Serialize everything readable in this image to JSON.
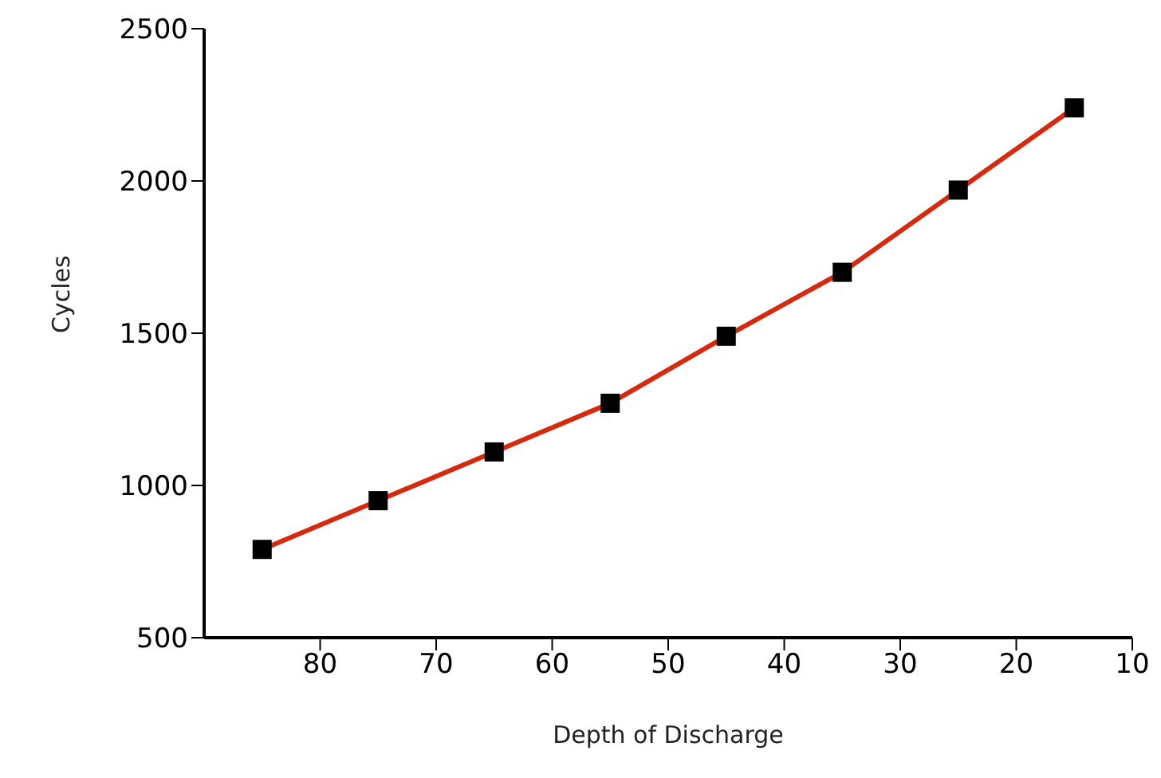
{
  "chart_data": {
    "type": "line",
    "xlabel": "Depth of Discharge",
    "ylabel": "Cycles",
    "x": [
      85,
      75,
      65,
      55,
      45,
      35,
      25,
      15
    ],
    "series": [
      {
        "color": "#d42a10",
        "values": [
          790,
          950,
          1110,
          1270,
          1490,
          1700,
          1970,
          2240
        ]
      }
    ],
    "xlim": [
      90,
      10
    ],
    "xticks": [
      80,
      70,
      60,
      50,
      40,
      30,
      20,
      10
    ],
    "ylim": [
      500,
      2500
    ],
    "yticks": [
      500,
      1000,
      1500,
      2000,
      2500
    ],
    "grid": false,
    "legend": false,
    "marker": "square",
    "line_style": "solid"
  }
}
